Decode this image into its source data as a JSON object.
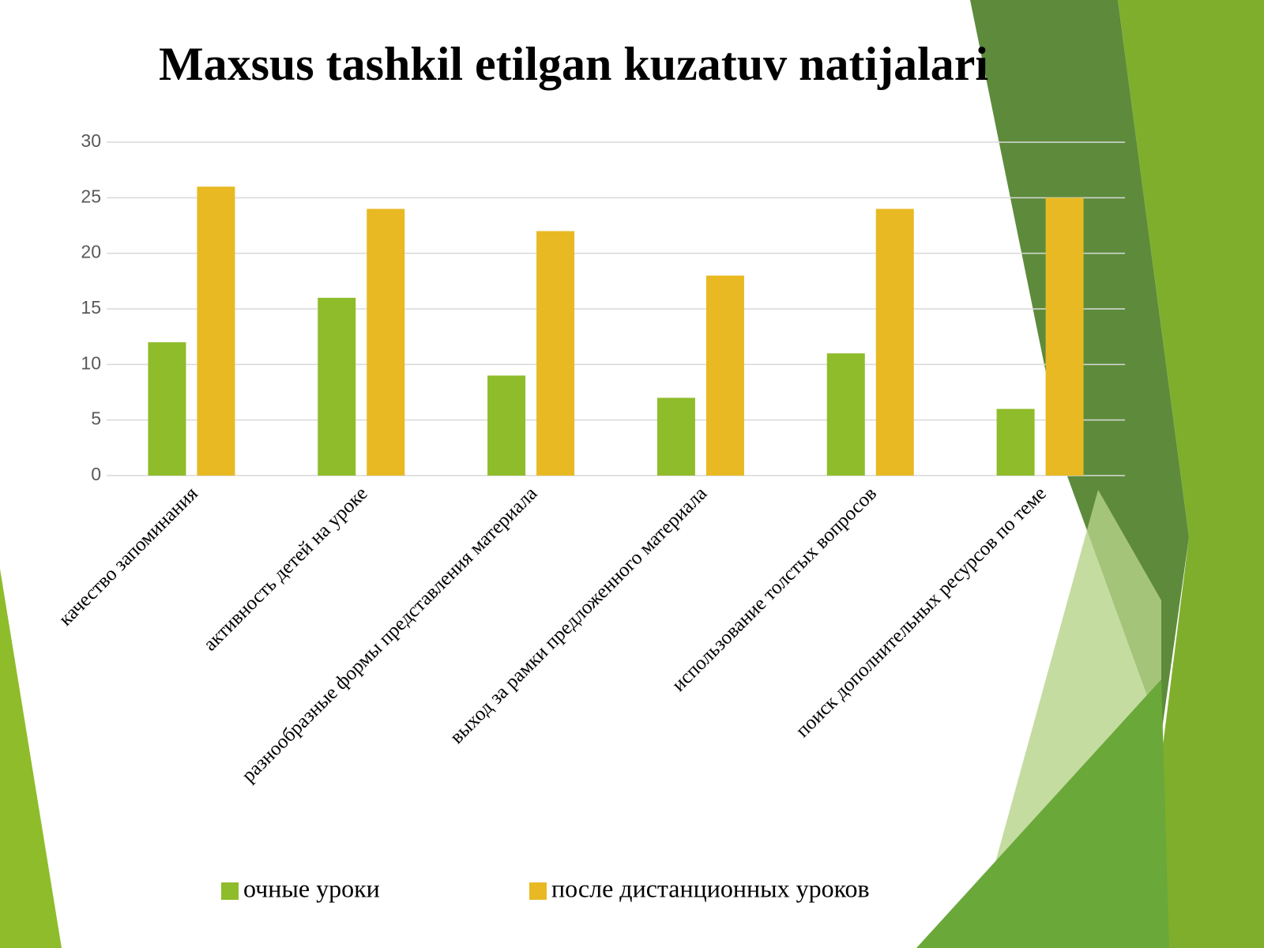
{
  "chart_data": {
    "type": "bar",
    "title": "Maxsus tashkil etilgan kuzatuv natijalari",
    "categories": [
      "качество запоминания",
      "активность детей на уроке",
      "разнообразные формы представления материала",
      "выход за рамки предложенного материала",
      "использование толстых вопросов",
      "поиск дополнительных ресурсов по теме"
    ],
    "series": [
      {
        "name": "очные уроки",
        "color": "#8fbc2b",
        "values": [
          12,
          16,
          9,
          7,
          11,
          6
        ]
      },
      {
        "name": "после дистанционных уроков",
        "color": "#e8b923",
        "values": [
          26,
          24,
          22,
          18,
          24,
          25
        ]
      }
    ],
    "ylim": [
      0,
      30
    ],
    "yticks": [
      0,
      5,
      10,
      15,
      20,
      25,
      30
    ],
    "grid": true,
    "legend": "bottom"
  }
}
